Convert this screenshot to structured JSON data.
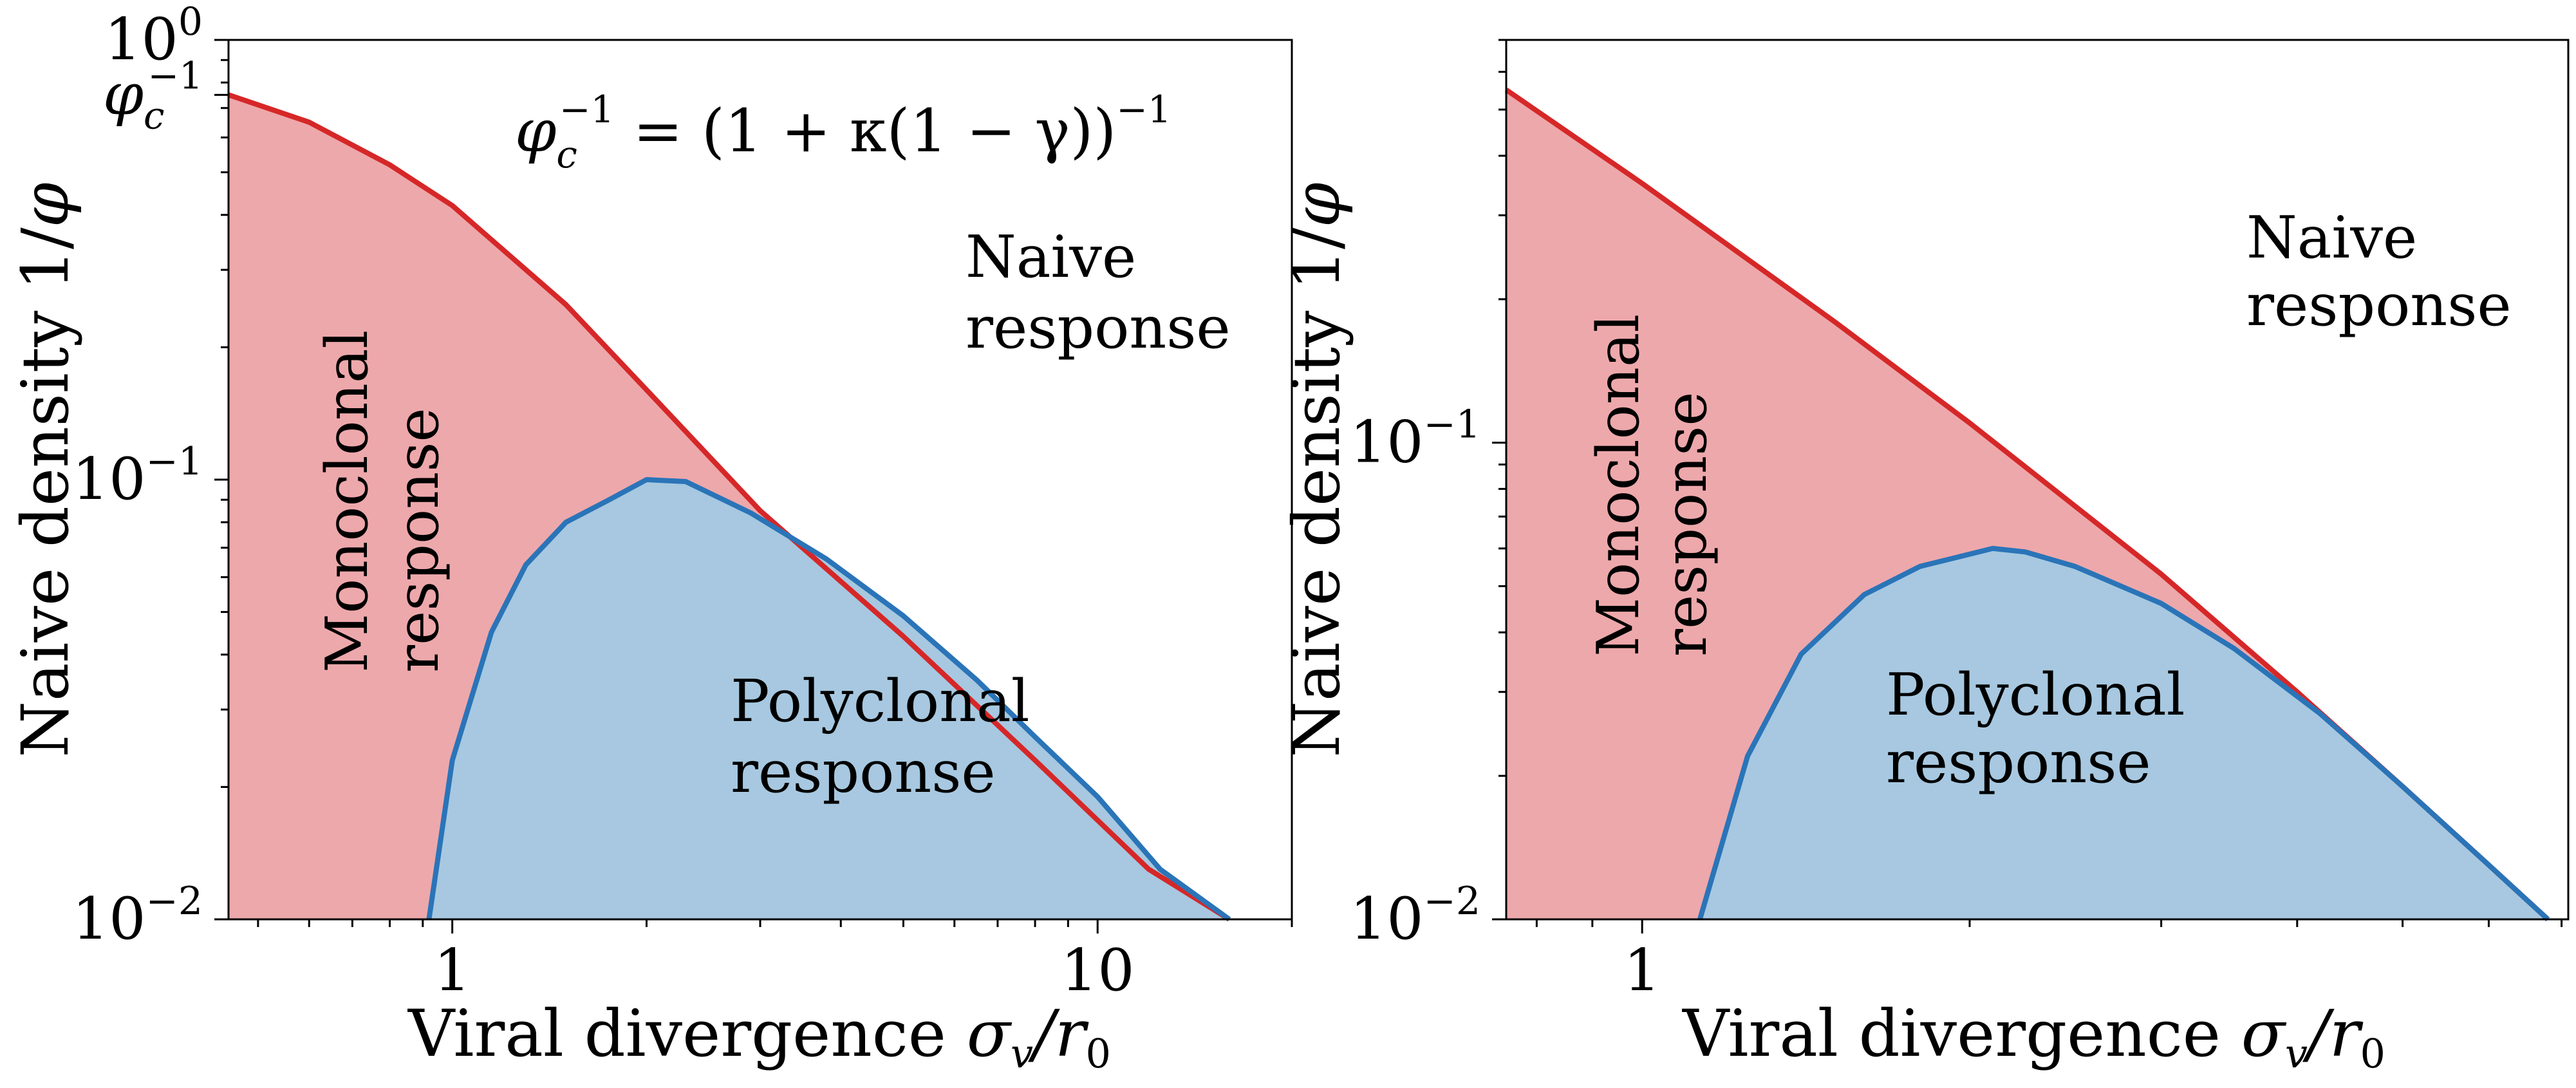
{
  "chart_data": [
    {
      "type": "area",
      "xscale": "log",
      "yscale": "log",
      "xlim": [
        0.45,
        20
      ],
      "ylim": [
        0.01,
        1
      ],
      "xlabel": "Viral divergence σ_v/r_0",
      "ylabel": "Naive density 1/φ",
      "xticks": [
        {
          "value": 1,
          "label": "1"
        },
        {
          "value": 10,
          "label": "10"
        }
      ],
      "yticks": [
        {
          "value": 0.01,
          "label": "10",
          "exp": "−2"
        },
        {
          "value": 0.1,
          "label": "10",
          "exp": "−1"
        },
        {
          "value": 1,
          "label": "10",
          "exp": "0"
        }
      ],
      "extra_ytick": {
        "value": 0.75,
        "label": "φ",
        "sub": "c",
        "exp": "−1"
      },
      "annotation": {
        "lhs": "φ",
        "sub": "c",
        "sup": "−1",
        "rhs": " = (1 + κ(1 − γ))",
        "rhs_sup": "−1"
      },
      "region_labels": {
        "naive": [
          "Naive",
          "response"
        ],
        "monoclonal": [
          "Monoclonal",
          "response"
        ],
        "polyclonal": [
          "Polyclonal",
          "response"
        ]
      },
      "series": [
        {
          "color": "#d62728",
          "fill": "#eda8ab",
          "x": [
            0.45,
            0.6,
            0.8,
            1.0,
            1.5,
            2.0,
            3.0,
            5.0,
            8.0,
            12.0,
            16.0
          ],
          "y": [
            0.75,
            0.65,
            0.52,
            0.42,
            0.25,
            0.16,
            0.085,
            0.044,
            0.023,
            0.013,
            0.01
          ]
        },
        {
          "color": "#2a74b8",
          "fill": "#a7c8e0",
          "x": [
            0.92,
            1.0,
            1.15,
            1.3,
            1.5,
            1.75,
            2.0,
            2.3,
            2.9,
            3.8,
            5.0,
            6.5,
            8.0,
            10.0,
            12.5,
            16.0
          ],
          "y": [
            0.01,
            0.023,
            0.045,
            0.064,
            0.08,
            0.09,
            0.1,
            0.099,
            0.084,
            0.066,
            0.049,
            0.035,
            0.026,
            0.019,
            0.013,
            0.01
          ]
        }
      ]
    },
    {
      "type": "area",
      "xscale": "log",
      "yscale": "log",
      "xlim": [
        0.75,
        7.1
      ],
      "ylim": [
        0.01,
        0.7
      ],
      "xlabel": "Viral divergence σ_v/r_0",
      "ylabel": "Naive density 1/φ",
      "xticks": [
        {
          "value": 1,
          "label": "1"
        }
      ],
      "yticks": [
        {
          "value": 0.01,
          "label": "10",
          "exp": "−2"
        },
        {
          "value": 0.1,
          "label": "10",
          "exp": "−1"
        }
      ],
      "region_labels": {
        "naive": [
          "Naive",
          "response"
        ],
        "monoclonal": [
          "Monoclonal",
          "response"
        ],
        "polyclonal": [
          "Polyclonal",
          "response"
        ]
      },
      "series": [
        {
          "color": "#d62728",
          "fill": "#eda8ab",
          "x": [
            0.75,
            1.0,
            1.5,
            2.0,
            3.0,
            4.0,
            5.0,
            6.0,
            6.8
          ],
          "y": [
            0.55,
            0.35,
            0.18,
            0.11,
            0.053,
            0.03,
            0.019,
            0.013,
            0.01
          ]
        },
        {
          "color": "#2a74b8",
          "fill": "#a7c8e0",
          "x": [
            1.13,
            1.25,
            1.4,
            1.6,
            1.8,
            2.1,
            2.25,
            2.5,
            3.0,
            3.5,
            4.2,
            5.0,
            6.0,
            6.8
          ],
          "y": [
            0.01,
            0.022,
            0.036,
            0.048,
            0.055,
            0.06,
            0.059,
            0.055,
            0.046,
            0.037,
            0.027,
            0.019,
            0.013,
            0.01
          ]
        }
      ]
    }
  ]
}
